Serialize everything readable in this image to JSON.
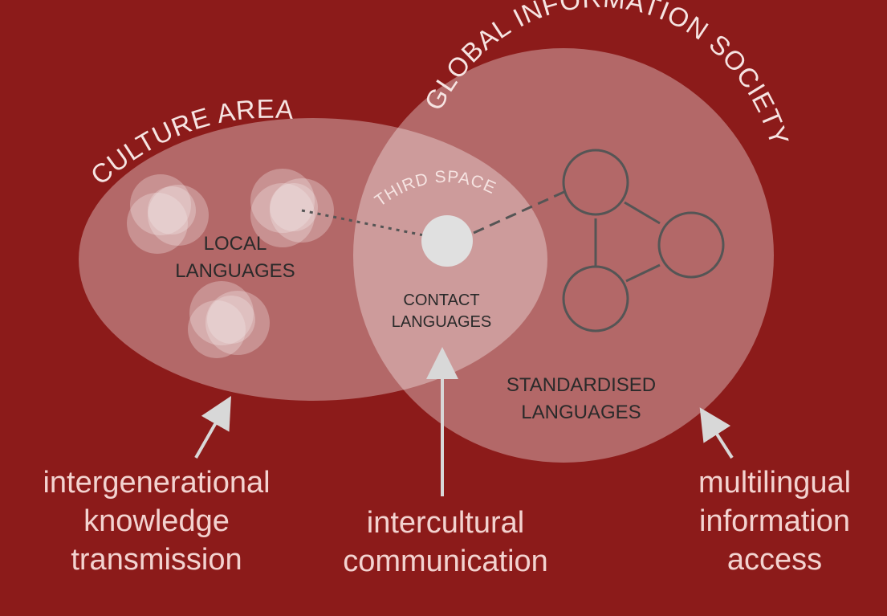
{
  "colors": {
    "background": "#8c1b1a",
    "region_fill": "#ffffff",
    "caption_text": "#f3d3d0",
    "inner_text": "#2a2a2a",
    "network_stroke": "#555555"
  },
  "regions": {
    "culture_area": "CULTURE AREA",
    "global_society": "GLOBAL INFORMATION SOCIETY",
    "third_space": "THIRD SPACE"
  },
  "labels": {
    "local_1": "LOCAL",
    "local_2": "LANGUAGES",
    "contact_1": "CONTACT",
    "contact_2": "LANGUAGES",
    "standard_1": "STANDARDISED",
    "standard_2": "LANGUAGES"
  },
  "captions": {
    "left": [
      "intergenerational",
      "knowledge",
      "transmission"
    ],
    "center": [
      "intercultural",
      "communication"
    ],
    "right": [
      "multilingual",
      "information",
      "access"
    ]
  }
}
